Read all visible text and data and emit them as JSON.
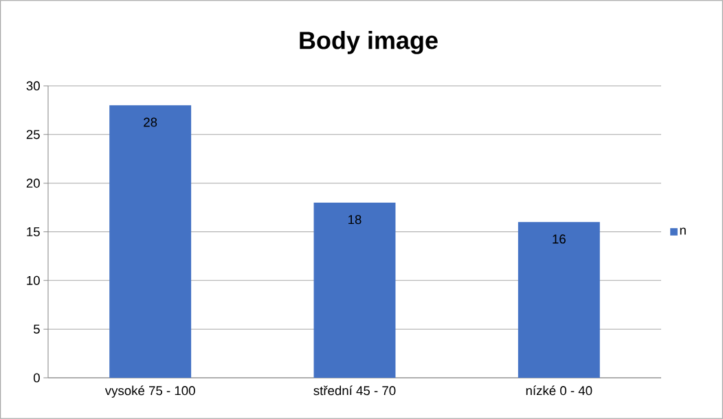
{
  "chart_data": {
    "type": "bar",
    "title": "Body image",
    "categories": [
      "vysoké 75 - 100",
      "střední 45 - 70",
      "nízké 0 - 40"
    ],
    "series": [
      {
        "name": "n",
        "color": "#4472c4",
        "values": [
          28,
          18,
          16
        ]
      }
    ],
    "ylim": [
      0,
      30
    ],
    "yticks": [
      0,
      5,
      10,
      15,
      20,
      25,
      30
    ],
    "grid": "y",
    "legend": "right",
    "data_labels": true
  }
}
